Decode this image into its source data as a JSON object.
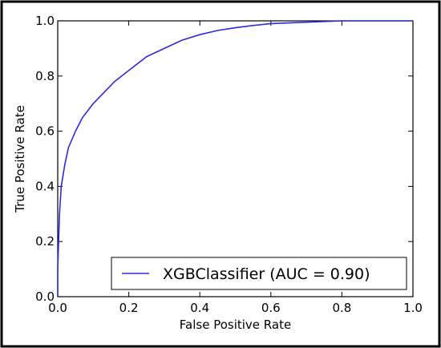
{
  "chart_data": {
    "type": "line",
    "title": "",
    "xlabel": "False Positive Rate",
    "ylabel": "True Positive Rate",
    "xlim": [
      0.0,
      1.0
    ],
    "ylim": [
      0.0,
      1.0
    ],
    "xticks": [
      "0.0",
      "0.2",
      "0.4",
      "0.6",
      "0.8",
      "1.0"
    ],
    "yticks": [
      "0.0",
      "0.2",
      "0.4",
      "0.6",
      "0.8",
      "1.0"
    ],
    "grid": false,
    "legend_position": "lower-right",
    "series": [
      {
        "name": "XGBClassifier (AUC = 0.90)",
        "color": "#2a2ae0",
        "x": [
          0.0,
          0.0,
          0.005,
          0.01,
          0.02,
          0.03,
          0.05,
          0.07,
          0.1,
          0.13,
          0.16,
          0.2,
          0.25,
          0.3,
          0.35,
          0.4,
          0.45,
          0.5,
          0.55,
          0.6,
          0.7,
          0.8,
          0.9,
          1.0
        ],
        "y": [
          0.0,
          0.1,
          0.3,
          0.4,
          0.48,
          0.54,
          0.6,
          0.65,
          0.7,
          0.74,
          0.78,
          0.82,
          0.87,
          0.9,
          0.93,
          0.95,
          0.965,
          0.975,
          0.983,
          0.99,
          0.995,
          1.0,
          1.0,
          1.0
        ]
      }
    ]
  }
}
